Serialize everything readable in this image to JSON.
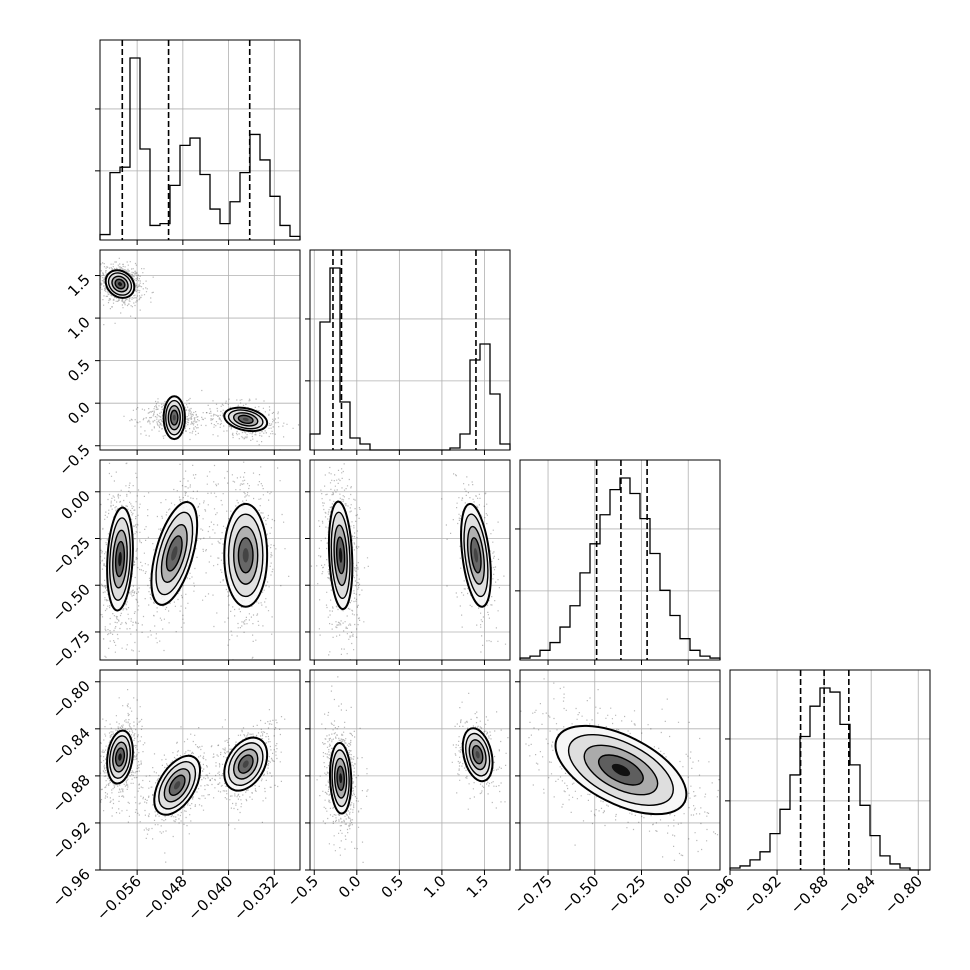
{
  "chart_data": {
    "type": "corner",
    "params": [
      {
        "name": "",
        "range": [
          -0.0625,
          -0.0275
        ],
        "ticks": [
          -0.056,
          -0.048,
          -0.04,
          -0.032
        ]
      },
      {
        "name": "",
        "range": [
          -0.55,
          1.8
        ],
        "ticks": [
          -0.5,
          0.0,
          0.5,
          1.0,
          1.5
        ]
      },
      {
        "name": "",
        "range": [
          -0.9,
          0.17
        ],
        "ticks": [
          -0.75,
          -0.5,
          -0.25,
          0.0
        ]
      },
      {
        "name": "",
        "range": [
          -0.96,
          -0.79
        ],
        "ticks": [
          -0.96,
          -0.92,
          -0.88,
          -0.84,
          -0.8
        ]
      }
    ],
    "tick_labels": {
      "p0": [
        "−0.056",
        "−0.048",
        "−0.040",
        "−0.032"
      ],
      "p1": [
        "−0.5",
        "0.0",
        "0.5",
        "1.0",
        "1.5"
      ],
      "p2": [
        "−0.75",
        "−0.50",
        "−0.25",
        "0.00"
      ],
      "p3": [
        "−0.96",
        "−0.92",
        "−0.88",
        "−0.84",
        "−0.80"
      ],
      "p1_y": [
        "−0.5",
        "0.0",
        "0.5",
        "1.0",
        "1.5"
      ],
      "p2_y": [
        "−0.75",
        "−0.50",
        "−0.25",
        "0.00"
      ],
      "p3_y": [
        "−0.96",
        "−0.92",
        "−0.88",
        "−0.84",
        "−0.80"
      ]
    },
    "quantiles": [
      [
        -0.0586,
        -0.0505,
        -0.0363
      ],
      [
        -0.28,
        -0.18,
        1.4
      ],
      [
        -0.49,
        -0.36,
        -0.22
      ],
      [
        -0.9,
        -0.88,
        -0.859
      ]
    ],
    "histograms": [
      {
        "bins": [
          -0.0625,
          -0.0275
        ],
        "counts": [
          0.03,
          0.37,
          0.4,
          1.0,
          0.5,
          0.08,
          0.09,
          0.3,
          0.52,
          0.56,
          0.36,
          0.17,
          0.09,
          0.21,
          0.37,
          0.58,
          0.44,
          0.24,
          0.08,
          0.02
        ]
      },
      {
        "bins": [
          -0.55,
          1.8
        ],
        "counts": [
          0.08,
          0.64,
          0.91,
          0.24,
          0.06,
          0.03,
          0.0,
          0.0,
          0.0,
          0.0,
          0.0,
          0.0,
          0.0,
          0.0,
          0.01,
          0.08,
          0.45,
          0.53,
          0.28,
          0.03
        ]
      },
      {
        "bins": [
          -0.9,
          0.17
        ],
        "counts": [
          0.01,
          0.02,
          0.05,
          0.09,
          0.17,
          0.28,
          0.45,
          0.6,
          0.75,
          0.88,
          0.94,
          0.86,
          0.73,
          0.55,
          0.36,
          0.23,
          0.11,
          0.05,
          0.02,
          0.01
        ]
      },
      {
        "bins": [
          -0.96,
          -0.79
        ],
        "counts": [
          0.01,
          0.02,
          0.05,
          0.09,
          0.18,
          0.3,
          0.47,
          0.66,
          0.81,
          0.9,
          0.88,
          0.72,
          0.52,
          0.32,
          0.17,
          0.07,
          0.03,
          0.01,
          0.0,
          0.0
        ]
      }
    ],
    "clusters_2d": [
      {
        "i": 1,
        "j": 0,
        "blobs": [
          {
            "cx": -0.059,
            "cy": 1.4,
            "sx": 0.001,
            "sy": 0.065,
            "rho": -0.2,
            "w": 1.0
          },
          {
            "cx": -0.0495,
            "cy": -0.17,
            "sx": 0.0015,
            "sy": 0.05,
            "rho": 0.0,
            "w": 0.6
          },
          {
            "cx": -0.037,
            "cy": -0.19,
            "sx": 0.0015,
            "sy": 0.055,
            "rho": -0.3,
            "w": 0.6
          }
        ]
      },
      {
        "i": 2,
        "j": 0,
        "blobs": [
          {
            "cx": -0.059,
            "cy": -0.36,
            "sx": 0.0009,
            "sy": 0.11,
            "rho": 0.2,
            "w": 1.0
          },
          {
            "cx": -0.0495,
            "cy": -0.33,
            "sx": 0.0016,
            "sy": 0.11,
            "rho": 0.55,
            "w": 0.7
          },
          {
            "cx": -0.037,
            "cy": -0.34,
            "sx": 0.0015,
            "sy": 0.11,
            "rho": 0.0,
            "w": 0.7
          }
        ]
      },
      {
        "i": 2,
        "j": 1,
        "blobs": [
          {
            "cx": -0.19,
            "cy": -0.34,
            "sx": 0.055,
            "sy": 0.115,
            "rho": -0.2,
            "w": 1.0
          },
          {
            "cx": 1.4,
            "cy": -0.34,
            "sx": 0.07,
            "sy": 0.11,
            "rho": -0.4,
            "w": 0.45
          }
        ]
      },
      {
        "i": 3,
        "j": 0,
        "blobs": [
          {
            "cx": -0.059,
            "cy": -0.864,
            "sx": 0.0009,
            "sy": 0.009,
            "rho": 0.2,
            "w": 1.0
          },
          {
            "cx": -0.049,
            "cy": -0.888,
            "sx": 0.0016,
            "sy": 0.01,
            "rho": 0.5,
            "w": 0.7
          },
          {
            "cx": -0.037,
            "cy": -0.87,
            "sx": 0.0015,
            "sy": 0.009,
            "rho": 0.35,
            "w": 0.7
          }
        ]
      },
      {
        "i": 3,
        "j": 1,
        "blobs": [
          {
            "cx": -0.19,
            "cy": -0.882,
            "sx": 0.05,
            "sy": 0.012,
            "rho": -0.1,
            "w": 1.0
          },
          {
            "cx": 1.42,
            "cy": -0.862,
            "sx": 0.07,
            "sy": 0.009,
            "rho": -0.3,
            "w": 0.45
          }
        ]
      },
      {
        "i": 3,
        "j": 2,
        "blobs": [
          {
            "cx": -0.36,
            "cy": -0.875,
            "sx": 0.14,
            "sy": 0.015,
            "rho": -0.55,
            "w": 1.0
          }
        ]
      }
    ]
  }
}
